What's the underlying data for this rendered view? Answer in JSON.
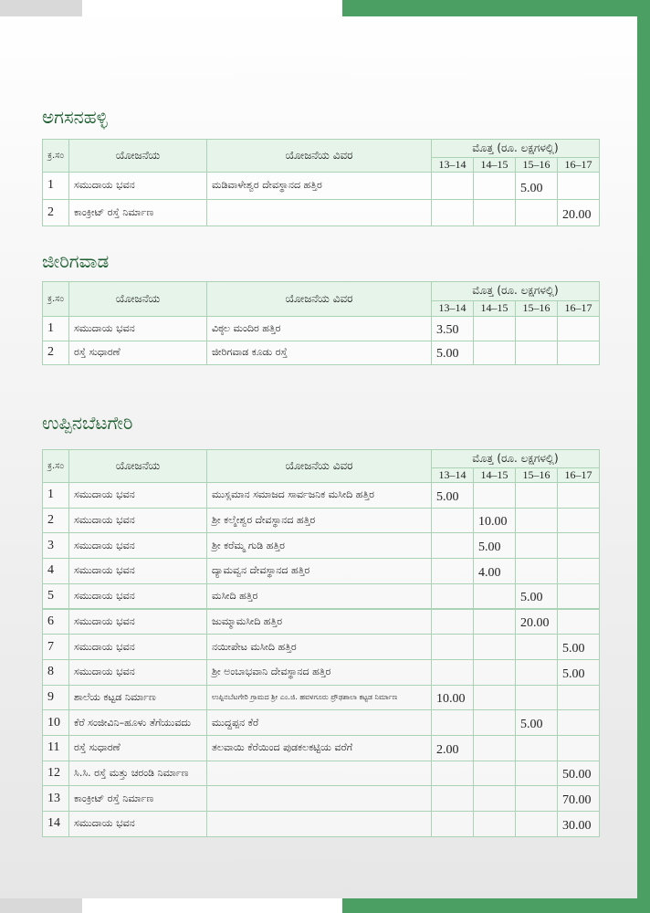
{
  "table_header": {
    "sno": "ಕ್ರ.ಸಂ",
    "scheme": "ಯೋಜನೆಯ",
    "detail": "ಯೋಜನೆಯ ವಿವರ",
    "amount": "ಮೊತ್ತ (ರೂ. ಲಕ್ಷಗಳಲ್ಲಿ)",
    "years": [
      "13–14",
      "14–15",
      "15–16",
      "16–17"
    ]
  },
  "sections": [
    {
      "title": "ಅಗಸನಹಳ್ಳಿ",
      "rows": [
        {
          "no": 1,
          "scheme": "ಸಮುದಾಯ ಭವನ",
          "detail": "ಮಡಿವಾಳೇಶ್ವರ ದೇವಸ್ಥಾನದ ಹತ್ತಿರ",
          "amounts": {
            "15–16": "5.00"
          }
        },
        {
          "no": 2,
          "scheme": "ಕಾಂಕ್ರೀಟ್ ರಸ್ತೆ ನಿರ್ಮಾಣ",
          "amounts": {
            "16–17": "20.00"
          }
        }
      ]
    },
    {
      "title": "ಜೀರಿಗವಾಡ",
      "rows": [
        {
          "no": 1,
          "scheme": "ಸಮುದಾಯ ಭವನ",
          "detail": "ವಿಠ್ಠಲ ಮಂದಿರ ಹತ್ತಿರ",
          "amounts": {
            "13–14": "3.50"
          }
        },
        {
          "no": 2,
          "scheme": "ರಸ್ತೆ ಸುಧಾರಣೆ",
          "detail": "ಜೀರಿಗವಾಡ ಕೂಡು ರಸ್ತೆ",
          "amounts": {
            "13–14": "5.00"
          }
        }
      ]
    },
    {
      "title": "ಉಪ್ಪಿನಬೆಟಗೇರಿ",
      "rows": [
        {
          "no": 1,
          "scheme": "ಸಮುದಾಯ ಭವನ",
          "detail": "ಮುಸ್ಲಮಾನ ಸಮಾಜದ ಸಾರ್ವಜನಿಕ ಮಸೀದಿ ಹತ್ತಿರ",
          "amounts": {
            "13–14": "5.00"
          }
        },
        {
          "no": 2,
          "scheme": "ಸಮುದಾಯ ಭವನ",
          "detail": "ಶ್ರೀ ಕಲ್ಮೇಶ್ವರ ದೇವಸ್ಥಾನದ ಹತ್ತಿರ",
          "amounts": {
            "14–15": "10.00"
          }
        },
        {
          "no": 3,
          "scheme": "ಸಮುದಾಯ ಭವನ",
          "detail": "ಶ್ರೀ ಕರೆಮ್ಮ ಗುಡಿ ಹತ್ತಿರ",
          "amounts": {
            "14–15": "5.00"
          }
        },
        {
          "no": 4,
          "scheme": "ಸಮುದಾಯ ಭವನ",
          "detail": "ದ್ಯಾಮವ್ವನ ದೇವಸ್ಥಾನದ ಹತ್ತಿರ",
          "amounts": {
            "14–15": "4.00"
          }
        },
        {
          "no": 5,
          "scheme": "ಸಮುದಾಯ ಭವನ",
          "detail": "ಮಸೀದಿ ಹತ್ತಿರ",
          "amounts": {
            "15–16": "5.00"
          }
        },
        {
          "no": 6,
          "scheme": "ಸಮುದಾಯ ಭವನ",
          "detail": "ಜುಮ್ಮಾಮಸೀದಿ ಹತ್ತಿರ",
          "amounts": {
            "15–16": "20.00"
          }
        },
        {
          "no": 7,
          "scheme": "ಸಮುದಾಯ ಭವನ",
          "detail": "ನಯೀಪೇಟ ಮಸೀದಿ ಹತ್ತಿರ",
          "amounts": {
            "16–17": "5.00"
          }
        },
        {
          "no": 8,
          "scheme": "ಸಮುದಾಯ ಭವನ",
          "detail": "ಶ್ರೀ ಅಂಬಾಭವಾನಿ ದೇವಸ್ಥಾನದ ಹತ್ತಿರ",
          "amounts": {
            "16–17": "5.00"
          }
        },
        {
          "no": 9,
          "scheme": "ಶಾಲೆಯ ಕಟ್ಟಡ ನಿರ್ಮಾಣ",
          "detail": "ಉಪ್ಪಿನಬೆಟಗೇರಿ ಗ್ರಾಮದ ಶ್ರೀ ಎಂ.ಜಿ. ಹವಳಗೂರು ಪ್ರೌಢಶಾಲಾ ಕಟ್ಟಡ ನಿರ್ಮಾಣ",
          "amounts": {
            "13–14": "10.00"
          }
        },
        {
          "no": 10,
          "scheme": "ಕೆರೆ ಸಂಜೀವಿನಿ–ಹೂಳು ತೆಗೆಯುವದು",
          "detail": "ಮುದ್ದಪ್ಪನ ಕೆರೆ",
          "amounts": {
            "15–16": "5.00"
          }
        },
        {
          "no": 11,
          "scheme": "ರಸ್ತೆ ಸುಧಾರಣೆ",
          "detail": "ತಲವಾಯಿ ಕೆರೆಯಿಂದ ಪುಡಕಲಕಟ್ಟಿಯ ವರೆಗೆ",
          "amounts": {
            "13–14": "2.00"
          }
        },
        {
          "no": 12,
          "scheme": "ಸಿ.ಸಿ. ರಸ್ತೆ ಮತ್ತು ಚರಂಡಿ ನಿರ್ಮಾಣ",
          "amounts": {
            "16–17": "50.00"
          }
        },
        {
          "no": 13,
          "scheme": "ಕಾಂಕ್ರೀಟ್ ರಸ್ತೆ ನಿರ್ಮಾಣ",
          "amounts": {
            "16–17": "70.00"
          }
        },
        {
          "no": 14,
          "scheme": "ಸಮುದಾಯ ಭವನ",
          "amounts": {
            "16–17": "30.00"
          }
        }
      ]
    }
  ]
}
